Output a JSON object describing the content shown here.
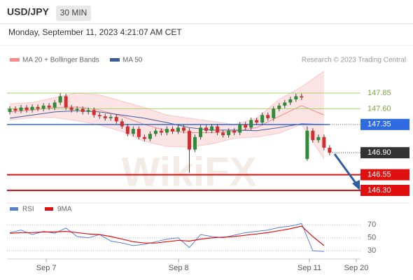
{
  "chart_data": {
    "type": "candlestick",
    "title": "USD/JPY",
    "timeframe": "30 MIN",
    "timestamp": "Monday, September 11, 2023 4:21:07 AM CET",
    "source": "Research © 2023 Trading Central",
    "watermark": "WikiFX",
    "xlim": [
      -0.5,
      62.5
    ],
    "xticks": [
      {
        "value": 6.5,
        "label": "Sep 7"
      },
      {
        "value": 30.1,
        "label": "Sep 8"
      },
      {
        "value": 53.4,
        "label": "Sep 11"
      },
      {
        "value": 61.75,
        "label": "Sep 20"
      }
    ],
    "ylim": [
      146.155,
      148.385
    ],
    "up_color": "#2e8b3a",
    "down_color": "#d32f2f",
    "ohlc": {
      "open": [
        147.55,
        147.6,
        147.57,
        147.62,
        147.58,
        147.63,
        147.6,
        147.65,
        147.62,
        147.7,
        147.8,
        147.62,
        147.58,
        147.6,
        147.55,
        147.58,
        147.5,
        147.48,
        147.45,
        147.47,
        147.4,
        147.32,
        147.2,
        147.28,
        147.15,
        147.12,
        147.2,
        147.25,
        147.22,
        147.28,
        147.24,
        147.3,
        147.25,
        146.95,
        147.15,
        147.3,
        147.25,
        147.32,
        147.22,
        147.18,
        147.25,
        147.22,
        147.35,
        147.3,
        147.42,
        147.38,
        147.5,
        147.45,
        147.6,
        147.65,
        147.7,
        147.75,
        147.8,
        146.8,
        147.25,
        147.1,
        147.15,
        146.98
      ],
      "high": [
        147.64,
        147.64,
        147.66,
        147.66,
        147.67,
        147.67,
        147.69,
        147.69,
        147.74,
        147.85,
        147.84,
        147.66,
        147.64,
        147.64,
        147.62,
        147.62,
        147.54,
        147.52,
        147.51,
        147.51,
        147.44,
        147.36,
        147.32,
        147.32,
        147.19,
        147.24,
        147.29,
        147.29,
        147.32,
        147.32,
        147.34,
        147.34,
        147.29,
        147.19,
        147.34,
        147.34,
        147.36,
        147.36,
        147.26,
        147.29,
        147.29,
        147.39,
        147.39,
        147.46,
        147.46,
        147.54,
        147.54,
        147.64,
        147.69,
        147.74,
        147.79,
        147.84,
        147.84,
        147.32,
        147.29,
        147.19,
        147.19,
        147.02
      ],
      "low": [
        147.51,
        147.53,
        147.53,
        147.54,
        147.54,
        147.56,
        147.56,
        147.58,
        147.58,
        147.66,
        147.58,
        147.54,
        147.54,
        147.51,
        147.51,
        147.46,
        147.44,
        147.41,
        147.41,
        147.36,
        147.28,
        147.16,
        147.16,
        147.11,
        147.08,
        147.08,
        147.16,
        147.18,
        147.18,
        147.2,
        147.2,
        147.21,
        146.58,
        146.91,
        147.11,
        147.21,
        147.21,
        147.18,
        147.14,
        147.14,
        147.18,
        147.18,
        147.26,
        147.26,
        147.34,
        147.34,
        147.41,
        147.41,
        147.56,
        147.61,
        147.66,
        147.71,
        147.74,
        146.77,
        147.06,
        147.06,
        146.94,
        146.86
      ],
      "close": [
        147.6,
        147.57,
        147.62,
        147.58,
        147.63,
        147.6,
        147.65,
        147.62,
        147.7,
        147.8,
        147.62,
        147.58,
        147.6,
        147.55,
        147.58,
        147.5,
        147.48,
        147.45,
        147.47,
        147.4,
        147.32,
        147.2,
        147.28,
        147.15,
        147.12,
        147.2,
        147.25,
        147.22,
        147.28,
        147.24,
        147.3,
        147.25,
        146.95,
        147.15,
        147.3,
        147.25,
        147.32,
        147.22,
        147.18,
        147.25,
        147.22,
        147.35,
        147.3,
        147.42,
        147.38,
        147.5,
        147.45,
        147.6,
        147.65,
        147.7,
        147.75,
        147.8,
        147.78,
        147.25,
        147.1,
        147.15,
        146.98,
        146.9
      ]
    },
    "overlays": [
      {
        "name": "MA 20 + Bollinger Bands",
        "color": "#f28b8b",
        "band_color": "#fcd9d9",
        "x": [
          0,
          4,
          8,
          12,
          16,
          20,
          24,
          28,
          32,
          36,
          40,
          44,
          48,
          52,
          56
        ],
        "values": [
          147.55,
          147.58,
          147.62,
          147.63,
          147.58,
          147.48,
          147.35,
          147.25,
          147.22,
          147.22,
          147.24,
          147.3,
          147.48,
          147.65,
          147.5
        ],
        "upper": [
          147.68,
          147.7,
          147.78,
          147.85,
          147.82,
          147.72,
          147.62,
          147.5,
          147.45,
          147.4,
          147.35,
          147.45,
          147.75,
          147.95,
          148.2
        ],
        "lower": [
          147.42,
          147.46,
          147.46,
          147.41,
          147.34,
          147.24,
          147.08,
          147.0,
          146.99,
          147.04,
          147.13,
          147.15,
          147.21,
          147.35,
          146.8
        ]
      },
      {
        "name": "MA 50",
        "color": "#3b5b9a",
        "x": [
          0,
          4,
          8,
          12,
          16,
          20,
          24,
          28,
          32,
          36,
          40,
          44,
          48,
          52,
          56
        ],
        "values": [
          147.45,
          147.5,
          147.55,
          147.57,
          147.55,
          147.5,
          147.45,
          147.38,
          147.3,
          147.26,
          147.26,
          147.25,
          147.3,
          147.36,
          147.35
        ]
      }
    ],
    "levels": [
      {
        "value": 147.85,
        "color": "#a5d36f",
        "style": "text"
      },
      {
        "value": 147.6,
        "label": "147.60",
        "color": "#a5d36f",
        "style": "text"
      },
      {
        "value": 147.35,
        "color": "#2f6be0",
        "style": "box"
      },
      {
        "value": 146.9,
        "label": "146.90",
        "color": "#333333",
        "style": "box-dotted"
      },
      {
        "value": 146.55,
        "color": "#e01010",
        "style": "box"
      },
      {
        "value": 146.3,
        "label": "146.30",
        "color": "#e01010",
        "style": "box"
      }
    ],
    "rsi": {
      "ylim": [
        12,
        95
      ],
      "yticks": [
        70,
        50,
        30
      ],
      "x": [
        0,
        2,
        4,
        6,
        8,
        10,
        12,
        14,
        16,
        18,
        20,
        22,
        24,
        26,
        28,
        30,
        32,
        34,
        36,
        38,
        40,
        42,
        44,
        46,
        48,
        50,
        52,
        54,
        56
      ],
      "series": [
        {
          "name": "RSI",
          "color": "#5b7fd6",
          "values": [
            58,
            62,
            55,
            60,
            57,
            65,
            52,
            50,
            55,
            45,
            42,
            38,
            40,
            44,
            48,
            50,
            35,
            55,
            52,
            50,
            54,
            58,
            60,
            62,
            66,
            68,
            72,
            30,
            29
          ]
        },
        {
          "name": "9MA",
          "color": "#e01010",
          "values": [
            57,
            58,
            58,
            59,
            59,
            60,
            58,
            56,
            55,
            52,
            48,
            44,
            42,
            42,
            44,
            46,
            45,
            48,
            50,
            51,
            52,
            54,
            56,
            58,
            61,
            64,
            68,
            52,
            38
          ]
        }
      ]
    }
  }
}
